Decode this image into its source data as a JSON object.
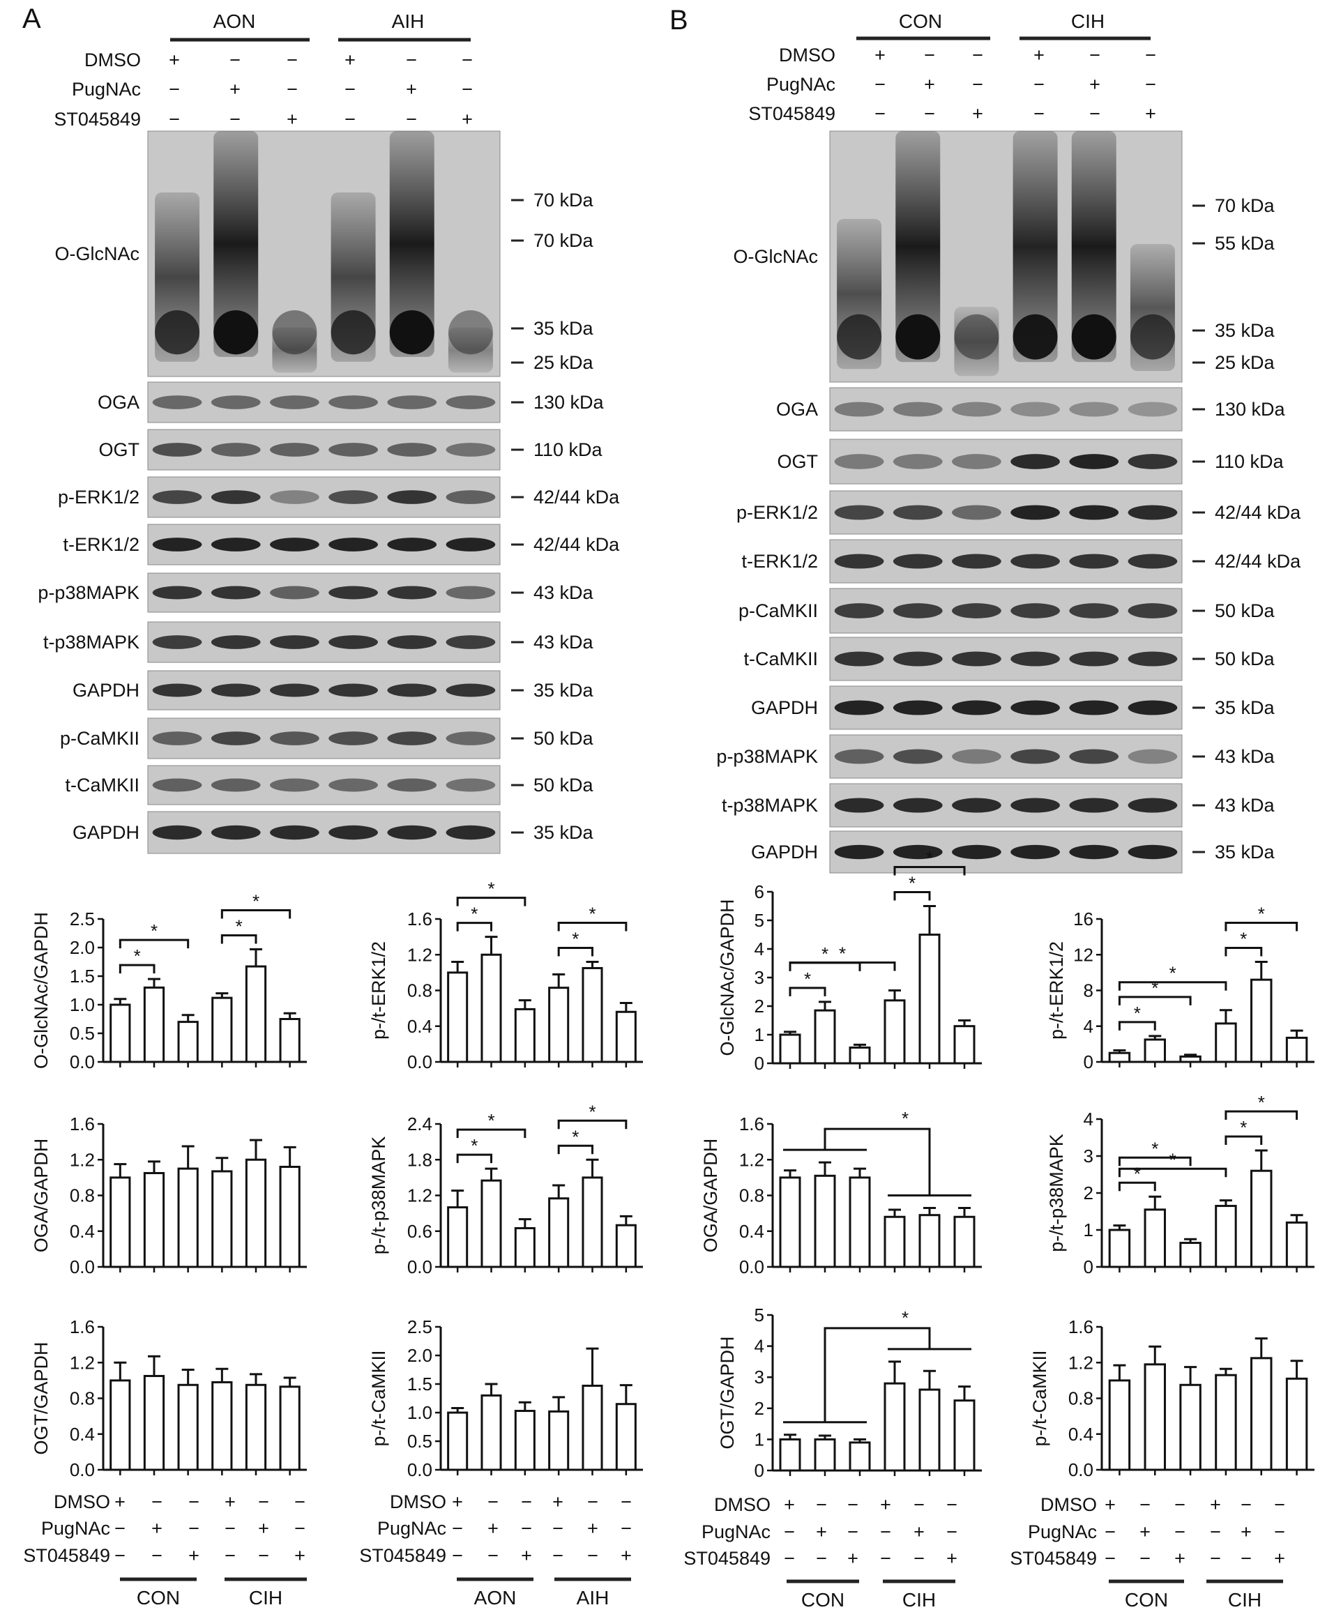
{
  "panels": [
    {
      "letter": "A",
      "groups": [
        "AON",
        "AIH"
      ],
      "treatments": [
        "DMSO",
        "PugNAc",
        "ST045849"
      ],
      "signs": [
        [
          "+",
          "−",
          "−",
          "+",
          "−",
          "−"
        ],
        [
          "−",
          "+",
          "−",
          "−",
          "+",
          "−"
        ],
        [
          "−",
          "−",
          "+",
          "−",
          "−",
          "+"
        ]
      ],
      "blots": [
        {
          "label": "O-GlcNAc",
          "markers": [
            "70 kDa",
            "70 kDa",
            "35 kDa",
            "25 kDa"
          ]
        },
        {
          "label": "OGA",
          "markers": [
            "130 kDa"
          ]
        },
        {
          "label": "OGT",
          "markers": [
            "110 kDa"
          ]
        },
        {
          "label": "p-ERK1/2",
          "markers": [
            "42/44 kDa"
          ]
        },
        {
          "label": "t-ERK1/2",
          "markers": [
            "42/44 kDa"
          ]
        },
        {
          "label": "p-p38MAPK",
          "markers": [
            "43 kDa"
          ]
        },
        {
          "label": "t-p38MAPK",
          "markers": [
            "43 kDa"
          ]
        },
        {
          "label": "GAPDH",
          "markers": [
            "35 kDa"
          ]
        },
        {
          "label": "p-CaMKII",
          "markers": [
            "50 kDa"
          ]
        },
        {
          "label": "t-CaMKII",
          "markers": [
            "50 kDa"
          ]
        },
        {
          "label": "GAPDH",
          "markers": [
            "35 kDa"
          ]
        }
      ],
      "bottom_groups": [
        [
          "CON",
          "CIH"
        ],
        [
          "AON",
          "AIH"
        ]
      ]
    },
    {
      "letter": "B",
      "groups": [
        "CON",
        "CIH"
      ],
      "treatments": [
        "DMSO",
        "PugNAc",
        "ST045849"
      ],
      "signs": [
        [
          "+",
          "−",
          "−",
          "+",
          "−",
          "−"
        ],
        [
          "−",
          "+",
          "−",
          "−",
          "+",
          "−"
        ],
        [
          "−",
          "−",
          "+",
          "−",
          "−",
          "+"
        ]
      ],
      "blots": [
        {
          "label": "O-GlcNAc",
          "markers": [
            "70 kDa",
            "55 kDa",
            "35 kDa",
            "25 kDa"
          ]
        },
        {
          "label": "OGA",
          "markers": [
            "130 kDa"
          ]
        },
        {
          "label": "OGT",
          "markers": [
            "110 kDa"
          ]
        },
        {
          "label": "p-ERK1/2",
          "markers": [
            "42/44 kDa"
          ]
        },
        {
          "label": "t-ERK1/2",
          "markers": [
            "42/44 kDa"
          ]
        },
        {
          "label": "p-CaMKII",
          "markers": [
            "50 kDa"
          ]
        },
        {
          "label": "t-CaMKII",
          "markers": [
            "50 kDa"
          ]
        },
        {
          "label": "GAPDH",
          "markers": [
            "35 kDa"
          ]
        },
        {
          "label": "p-p38MAPK",
          "markers": [
            "43 kDa"
          ]
        },
        {
          "label": "t-p38MAPK",
          "markers": [
            "43 kDa"
          ]
        },
        {
          "label": "GAPDH",
          "markers": [
            "35 kDa"
          ]
        }
      ],
      "bottom_groups": [
        [
          "CON",
          "CIH"
        ],
        [
          "CON",
          "CIH"
        ]
      ]
    }
  ],
  "significance_marker": "*",
  "chart_data": [
    {
      "type": "bar",
      "panel": "A",
      "ylabel": "O-GlcNAc/GAPDH",
      "ylim": [
        0,
        2.5
      ],
      "yticks": [
        "0.0",
        "0.5",
        "1.0",
        "1.5",
        "2.0",
        "2.5"
      ],
      "values": [
        1.0,
        1.3,
        0.7,
        1.12,
        1.67,
        0.75
      ],
      "errors": [
        0.1,
        0.15,
        0.12,
        0.08,
        0.3,
        0.1
      ],
      "sig": [
        [
          0,
          1
        ],
        [
          0,
          2
        ],
        [
          3,
          4
        ],
        [
          3,
          5
        ]
      ]
    },
    {
      "type": "bar",
      "panel": "A",
      "ylabel": "OGA/GAPDH",
      "ylim": [
        0,
        1.6
      ],
      "yticks": [
        "0.0",
        "0.4",
        "0.8",
        "1.2",
        "1.6"
      ],
      "values": [
        1.0,
        1.05,
        1.1,
        1.07,
        1.2,
        1.12
      ],
      "errors": [
        0.15,
        0.13,
        0.25,
        0.15,
        0.22,
        0.22
      ],
      "sig": []
    },
    {
      "type": "bar",
      "panel": "A",
      "ylabel": "OGT/GAPDH",
      "ylim": [
        0,
        1.6
      ],
      "yticks": [
        "0.0",
        "0.4",
        "0.8",
        "1.2",
        "1.6"
      ],
      "values": [
        1.0,
        1.05,
        0.95,
        0.98,
        0.95,
        0.93
      ],
      "errors": [
        0.2,
        0.22,
        0.17,
        0.15,
        0.12,
        0.1
      ],
      "sig": []
    },
    {
      "type": "bar",
      "panel": "A",
      "ylabel": "p-/t-ERK1/2",
      "ylim": [
        0,
        1.6
      ],
      "yticks": [
        "0.0",
        "0.4",
        "0.8",
        "1.2",
        "1.6"
      ],
      "values": [
        1.0,
        1.2,
        0.59,
        0.83,
        1.05,
        0.56
      ],
      "errors": [
        0.12,
        0.2,
        0.1,
        0.15,
        0.07,
        0.1
      ],
      "sig": [
        [
          0,
          1
        ],
        [
          0,
          2
        ],
        [
          3,
          4
        ],
        [
          3,
          5
        ]
      ]
    },
    {
      "type": "bar",
      "panel": "A",
      "ylabel": "p-/t-p38MAPK",
      "ylim": [
        0,
        2.4
      ],
      "yticks": [
        "0.0",
        "0.6",
        "1.2",
        "1.8",
        "2.4"
      ],
      "values": [
        1.0,
        1.45,
        0.65,
        1.15,
        1.5,
        0.7
      ],
      "errors": [
        0.28,
        0.2,
        0.15,
        0.22,
        0.3,
        0.15
      ],
      "sig": [
        [
          0,
          1
        ],
        [
          0,
          2
        ],
        [
          3,
          4
        ],
        [
          3,
          5
        ]
      ]
    },
    {
      "type": "bar",
      "panel": "A",
      "ylabel": "p-/t-CaMKII",
      "ylim": [
        0,
        2.5
      ],
      "yticks": [
        "0.0",
        "0.5",
        "1.0",
        "1.5",
        "2.0",
        "2.5"
      ],
      "values": [
        1.0,
        1.3,
        1.03,
        1.02,
        1.47,
        1.15
      ],
      "errors": [
        0.08,
        0.2,
        0.15,
        0.25,
        0.65,
        0.33
      ],
      "sig": []
    },
    {
      "type": "bar",
      "panel": "B",
      "ylabel": "O-GlcNAc/GAPDH",
      "ylim": [
        0,
        6
      ],
      "yticks": [
        "0",
        "1",
        "2",
        "3",
        "4",
        "5",
        "6"
      ],
      "values": [
        1.0,
        1.85,
        0.55,
        2.2,
        4.5,
        1.3
      ],
      "errors": [
        0.1,
        0.3,
        0.1,
        0.35,
        1.0,
        0.2
      ],
      "sig": [
        [
          0,
          1
        ],
        [
          0,
          2
        ],
        [
          0,
          3
        ],
        [
          3,
          4
        ],
        [
          3,
          5
        ]
      ]
    },
    {
      "type": "bar",
      "panel": "B",
      "ylabel": "OGA/GAPDH",
      "ylim": [
        0,
        1.6
      ],
      "yticks": [
        "0.0",
        "0.4",
        "0.8",
        "1.2",
        "1.6"
      ],
      "values": [
        1.0,
        1.02,
        1.0,
        0.56,
        0.58,
        0.56
      ],
      "errors": [
        0.08,
        0.15,
        0.1,
        0.08,
        0.08,
        0.1
      ],
      "sig_group": true
    },
    {
      "type": "bar",
      "panel": "B",
      "ylabel": "OGT/GAPDH",
      "ylim": [
        0,
        5
      ],
      "yticks": [
        "0",
        "1",
        "2",
        "3",
        "4",
        "5"
      ],
      "values": [
        1.0,
        1.0,
        0.9,
        2.8,
        2.6,
        2.25
      ],
      "errors": [
        0.15,
        0.12,
        0.1,
        0.7,
        0.6,
        0.45
      ],
      "sig_group": true
    },
    {
      "type": "bar",
      "panel": "B",
      "ylabel": "p-/t-ERK1/2",
      "ylim": [
        0,
        16
      ],
      "yticks": [
        "0",
        "4",
        "8",
        "12",
        "16"
      ],
      "values": [
        1.0,
        2.5,
        0.6,
        4.3,
        9.2,
        2.7
      ],
      "errors": [
        0.3,
        0.4,
        0.2,
        1.5,
        2.0,
        0.8
      ],
      "sig": [
        [
          0,
          1
        ],
        [
          0,
          2
        ],
        [
          0,
          3
        ],
        [
          3,
          4
        ],
        [
          3,
          5
        ]
      ]
    },
    {
      "type": "bar",
      "panel": "B",
      "ylabel": "p-/t-p38MAPK",
      "ylim": [
        0,
        4
      ],
      "yticks": [
        "0",
        "1",
        "2",
        "3",
        "4"
      ],
      "values": [
        1.0,
        1.55,
        0.65,
        1.65,
        2.6,
        1.2
      ],
      "errors": [
        0.12,
        0.35,
        0.1,
        0.15,
        0.55,
        0.2
      ],
      "sig": [
        [
          0,
          1
        ],
        [
          0,
          2
        ],
        [
          0,
          3
        ],
        [
          3,
          4
        ],
        [
          3,
          5
        ]
      ]
    },
    {
      "type": "bar",
      "panel": "B",
      "ylabel": "p-/t-CaMKII",
      "ylim": [
        0,
        1.6
      ],
      "yticks": [
        "0.0",
        "0.4",
        "0.8",
        "1.2",
        "1.6"
      ],
      "values": [
        1.0,
        1.18,
        0.95,
        1.06,
        1.25,
        1.02
      ],
      "errors": [
        0.17,
        0.2,
        0.2,
        0.07,
        0.22,
        0.2
      ],
      "sig": []
    }
  ]
}
